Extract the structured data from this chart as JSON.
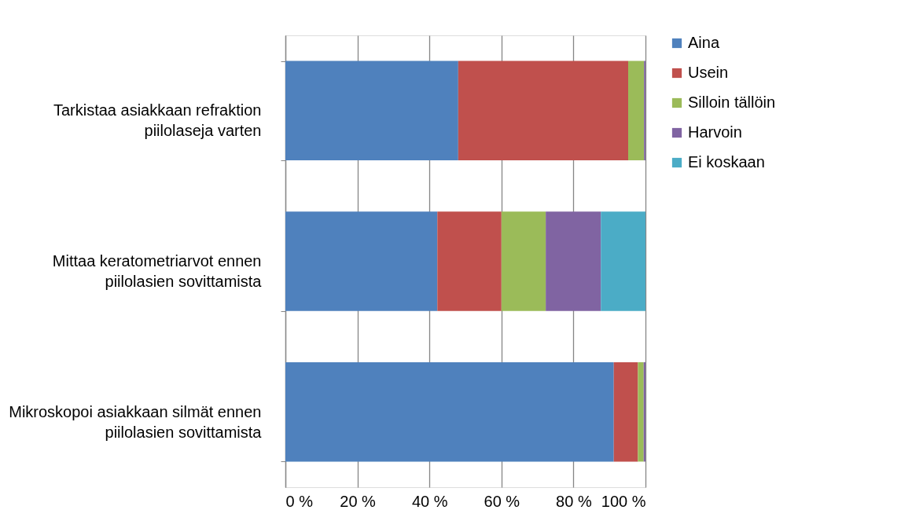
{
  "chart_data": {
    "type": "bar",
    "orientation": "horizontal",
    "stacked": true,
    "categories": [
      "Tarkistaa asiakkaan refraktion piilolaseja varten",
      "Mittaa keratometriarvot ennen piilolasien sovittamista",
      "Mikroskopoi asiakkaan silmät ennen piilolasien sovittamista"
    ],
    "series": [
      {
        "name": "Aina",
        "color": "#4f81bd",
        "values": [
          48.0,
          42.2,
          91.2
        ]
      },
      {
        "name": "Usein",
        "color": "#c0504d",
        "values": [
          47.2,
          17.8,
          6.7
        ]
      },
      {
        "name": "Silloin tällöin",
        "color": "#9bbb59",
        "values": [
          4.4,
          12.3,
          1.6
        ]
      },
      {
        "name": "Harvoin",
        "color": "#8064a2",
        "values": [
          0.4,
          15.3,
          0.5
        ]
      },
      {
        "name": "Ei koskaan",
        "color": "#4bacc6",
        "values": [
          0,
          12.4,
          0
        ]
      }
    ],
    "xlim": [
      0,
      100
    ],
    "xticks": [
      {
        "value": 0,
        "label": "0 %"
      },
      {
        "value": 20,
        "label": "20 %"
      },
      {
        "value": 40,
        "label": "40 %"
      },
      {
        "value": 60,
        "label": "60 %"
      },
      {
        "value": 80,
        "label": "80 %"
      },
      {
        "value": 100,
        "label": "100 %"
      }
    ],
    "grid": "x",
    "legend": "right"
  }
}
